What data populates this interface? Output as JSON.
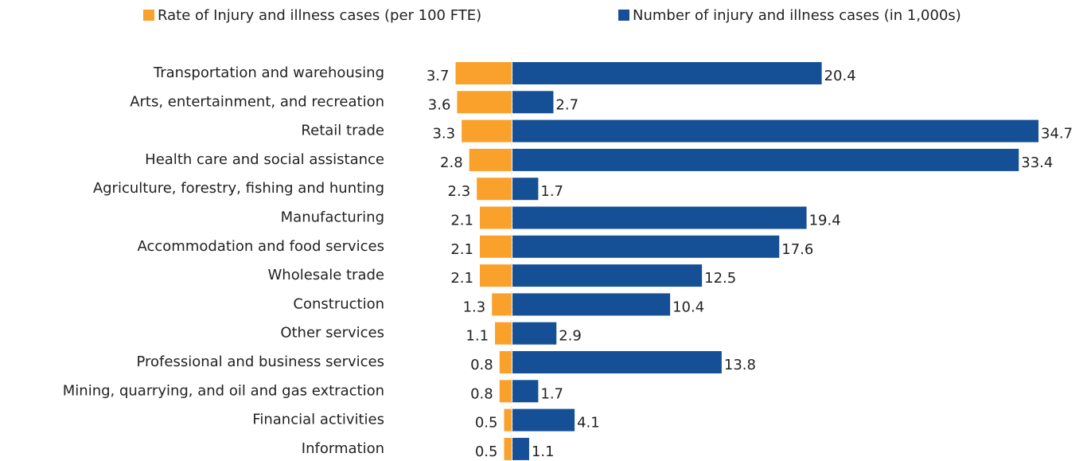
{
  "chart_data": {
    "type": "bar",
    "categories": [
      "Transportation and warehousing",
      "Arts, entertainment, and recreation",
      "Retail trade",
      "Health care and social assistance",
      "Agriculture, forestry, fishing and hunting",
      "Manufacturing",
      "Accommodation and food services",
      "Wholesale trade",
      "Construction",
      "Other services",
      "Professional and business services",
      "Mining, quarrying, and oil and gas extraction",
      "Financial activities",
      "Information"
    ],
    "series": [
      {
        "name": "Rate of Injury and illness cases (per 100 FTE)",
        "color": "#f9a12b",
        "values": [
          3.7,
          3.6,
          3.3,
          2.8,
          2.3,
          2.1,
          2.1,
          2.1,
          1.3,
          1.1,
          0.8,
          0.8,
          0.5,
          0.5
        ]
      },
      {
        "name": "Number of injury and illness cases (in 1,000s)",
        "color": "#154f96",
        "values": [
          20.4,
          2.7,
          34.7,
          33.4,
          1.7,
          19.4,
          17.6,
          12.5,
          10.4,
          2.9,
          13.8,
          1.7,
          4.1,
          1.1
        ]
      }
    ]
  }
}
